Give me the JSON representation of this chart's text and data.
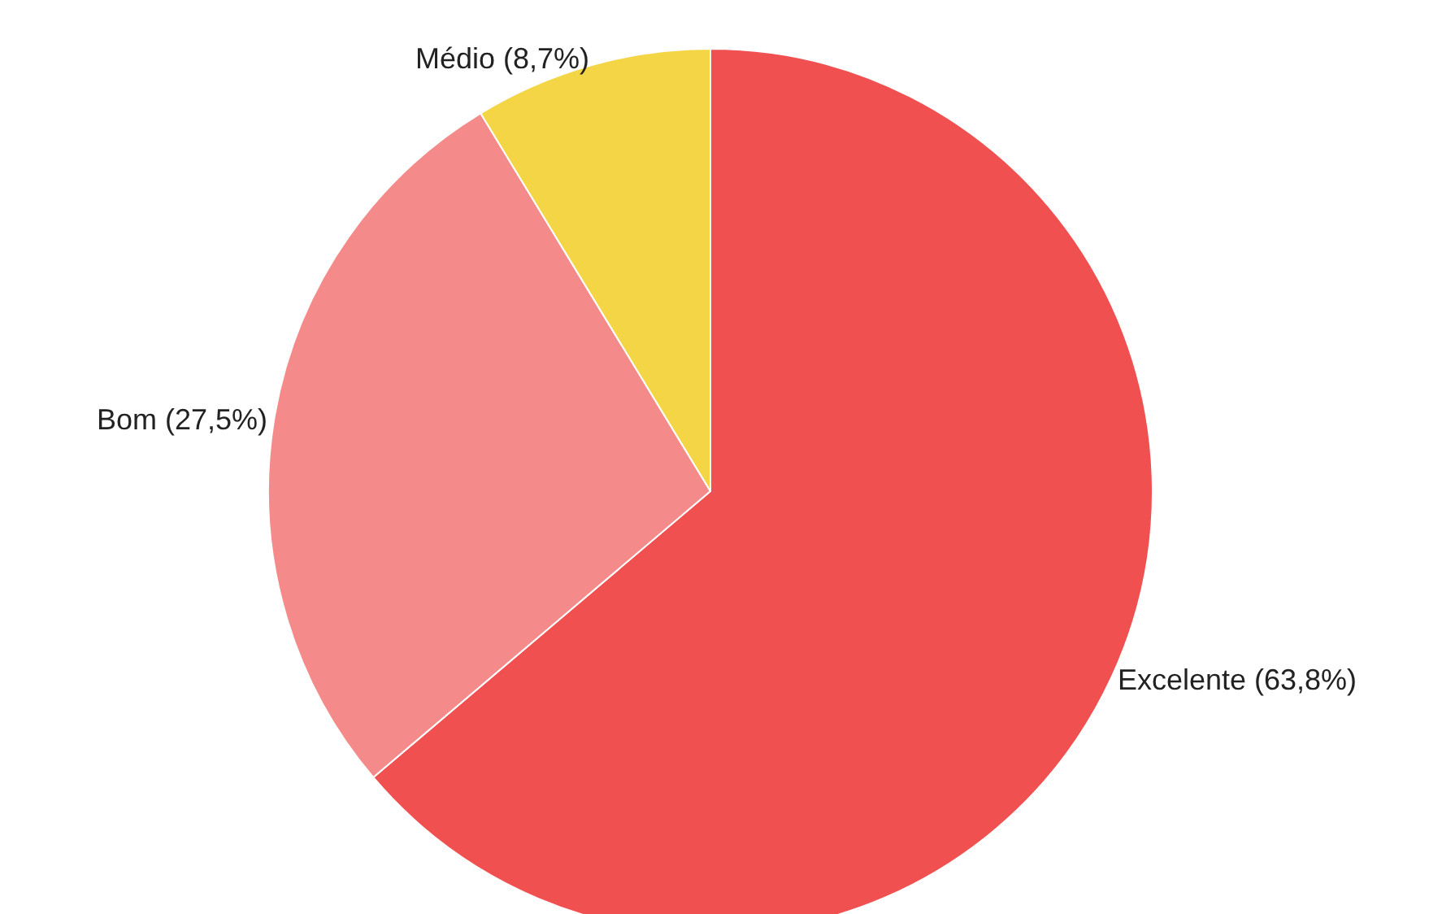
{
  "chart_data": {
    "type": "pie",
    "categories": [
      "Excelente",
      "Bom",
      "Médio"
    ],
    "values": [
      63.8,
      27.5,
      8.7
    ],
    "value_labels": [
      "(63,8%)",
      "(27,5%)",
      "(8,7%)"
    ],
    "colors": [
      "#f05050",
      "#f48b8a",
      "#f4d546"
    ],
    "legend": false
  }
}
